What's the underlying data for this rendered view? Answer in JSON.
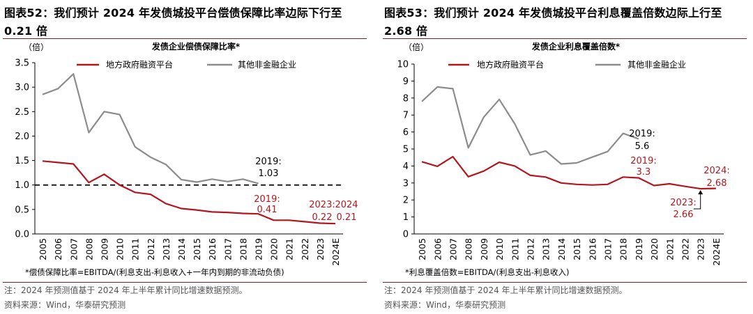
{
  "colors": {
    "local_gov": "#b5161e",
    "other": "#8c8c8c",
    "axis": "#000000",
    "rule": "#7a1f1f"
  },
  "left": {
    "fig_title": "图表52：我们预计 2024 年发债城投平台偿债保障比率边际下行至0.21 倍",
    "note": "注：2024 年预测值基于 2024 年上半年累计同比增速数据预测。",
    "source": "资料来源：Wind，华泰研究预测"
  },
  "right": {
    "fig_title": "图表53：我们预计 2024 年发债城投平台利息覆盖倍数边际上行至2.68 倍",
    "note": "注：2024 年预测值基于 2024 年上半年累计同比增速数据预测。",
    "source": "资料来源：Wind，华泰研究预测"
  },
  "chart_data": [
    {
      "type": "line",
      "title": "发债企业偿债保障比率*",
      "ylabel": "（倍）",
      "ylim": [
        0,
        3.5
      ],
      "yticks": [
        0,
        0.5,
        1.0,
        1.5,
        2.0,
        2.5,
        3.0,
        3.5
      ],
      "ytick_labels": [
        "0.0",
        "0.5",
        "1.0",
        "1.5",
        "2.0",
        "2.5",
        "3.0",
        "3.5"
      ],
      "categories": [
        "2005",
        "2006",
        "2007",
        "2008",
        "2009",
        "2010",
        "2011",
        "2012",
        "2013",
        "2014",
        "2015",
        "2016",
        "2017",
        "2018",
        "2019",
        "2020",
        "2021",
        "2022",
        "2023",
        "2024E"
      ],
      "series": [
        {
          "name": "地方政府融资平台",
          "color": "#b5161e",
          "values": [
            1.49,
            1.46,
            1.43,
            1.05,
            1.22,
            1.0,
            0.85,
            0.81,
            0.62,
            0.52,
            0.49,
            0.45,
            0.44,
            0.42,
            0.41,
            0.28,
            0.28,
            0.25,
            0.22,
            0.21
          ]
        },
        {
          "name": "其他非金融企业",
          "color": "#8c8c8c",
          "values": [
            2.85,
            2.97,
            3.27,
            2.07,
            2.5,
            2.44,
            1.78,
            1.57,
            1.42,
            1.11,
            1.06,
            1.12,
            1.07,
            1.12,
            1.03,
            null,
            null,
            null,
            null,
            null
          ]
        }
      ],
      "reference_line": {
        "value": 1.0,
        "style": "dashed"
      },
      "annotations": [
        {
          "text": "2019:",
          "text2": "1.03",
          "color": "#000000"
        },
        {
          "text": "2019:",
          "text2": "0.41",
          "color": "#b5161e"
        },
        {
          "text": "2023:",
          "text2": "0.22",
          "color": "#b5161e"
        },
        {
          "text": "2024",
          "text2": "0.21",
          "color": "#b5161e"
        }
      ],
      "footnote": "*偿债保障比率=EBITDA/(利息支出-利息收入+一年内到期的非流动负债)"
    },
    {
      "type": "line",
      "title": "发债企业利息覆盖倍数*",
      "ylabel": "（倍）",
      "ylim": [
        0,
        10
      ],
      "yticks": [
        0,
        1,
        2,
        3,
        4,
        5,
        6,
        7,
        8,
        9,
        10
      ],
      "ytick_labels": [
        "0",
        "1",
        "2",
        "3",
        "4",
        "5",
        "6",
        "7",
        "8",
        "9",
        "10"
      ],
      "categories": [
        "2005",
        "2006",
        "2007",
        "2008",
        "2009",
        "2010",
        "2011",
        "2012",
        "2013",
        "2014",
        "2015",
        "2016",
        "2017",
        "2018",
        "2019",
        "2020",
        "2021",
        "2022",
        "2023",
        "2024E"
      ],
      "series": [
        {
          "name": "地方政府融资平台",
          "color": "#b5161e",
          "values": [
            4.25,
            3.98,
            4.55,
            3.37,
            3.7,
            4.22,
            4.0,
            3.45,
            3.35,
            3.0,
            2.92,
            2.88,
            2.92,
            3.35,
            3.3,
            2.85,
            2.95,
            2.8,
            2.66,
            2.68
          ]
        },
        {
          "name": "其他非金融企业",
          "color": "#8c8c8c",
          "values": [
            7.8,
            8.65,
            8.55,
            5.07,
            6.88,
            7.92,
            6.48,
            4.65,
            4.88,
            4.12,
            4.18,
            4.52,
            4.85,
            5.92,
            5.6,
            null,
            null,
            null,
            null,
            null
          ]
        }
      ],
      "annotations": [
        {
          "text": "2019:",
          "text2": "5.6",
          "color": "#000000"
        },
        {
          "text": "2019:",
          "text2": "3.3",
          "color": "#b5161e"
        },
        {
          "text": "2024:",
          "text2": "2.68",
          "color": "#b5161e"
        },
        {
          "text": "2023:",
          "text2": "2.66",
          "color": "#b5161e"
        }
      ],
      "footnote": "*利息覆盖倍数=EBITDA/(利息支出-利息收入)"
    }
  ]
}
